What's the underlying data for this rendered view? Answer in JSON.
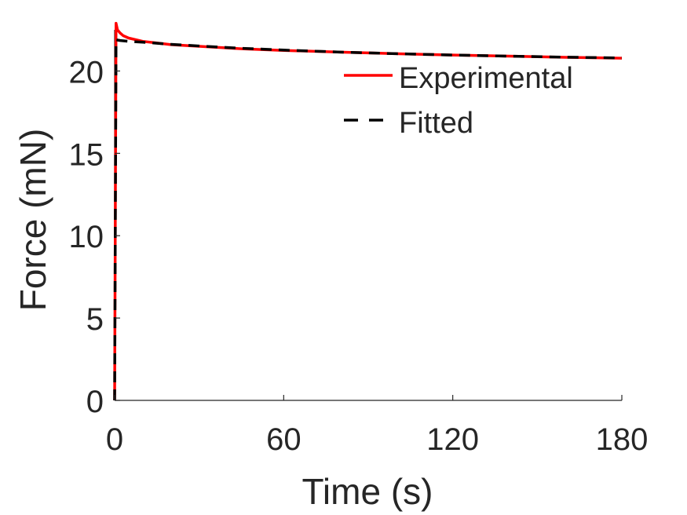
{
  "chart_data": {
    "type": "line",
    "title": "",
    "xlabel": "Time (s)",
    "ylabel": "Force (mN)",
    "xlim": [
      0,
      180
    ],
    "ylim": [
      0,
      22.5
    ],
    "xticks": [
      0,
      60,
      120,
      180
    ],
    "xtick_labels": [
      "0",
      "60",
      "120",
      "180"
    ],
    "yticks": [
      0,
      5,
      10,
      15,
      20
    ],
    "ytick_labels": [
      "0",
      "5",
      "10",
      "15",
      "20"
    ],
    "grid": false,
    "legend_position": "top-right",
    "series": [
      {
        "name": "Experimental",
        "color": "#ff0000",
        "style": "solid",
        "x": [
          0,
          0.5,
          1,
          2,
          3,
          5,
          10,
          15,
          20,
          30,
          45,
          60,
          80,
          100,
          120,
          140,
          160,
          180
        ],
        "y": [
          0,
          22.9,
          22.5,
          22.3,
          22.15,
          22.0,
          21.8,
          21.7,
          21.6,
          21.5,
          21.35,
          21.25,
          21.15,
          21.05,
          20.97,
          20.9,
          20.83,
          20.78
        ]
      },
      {
        "name": "Fitted",
        "color": "#000000",
        "style": "dashed",
        "x": [
          0,
          0.5,
          1,
          2,
          5,
          10,
          20,
          30,
          45,
          60,
          80,
          100,
          120,
          140,
          160,
          180
        ],
        "y": [
          0,
          21.9,
          21.88,
          21.85,
          21.8,
          21.75,
          21.62,
          21.52,
          21.38,
          21.27,
          21.15,
          21.05,
          20.97,
          20.9,
          20.84,
          20.79
        ]
      }
    ]
  }
}
